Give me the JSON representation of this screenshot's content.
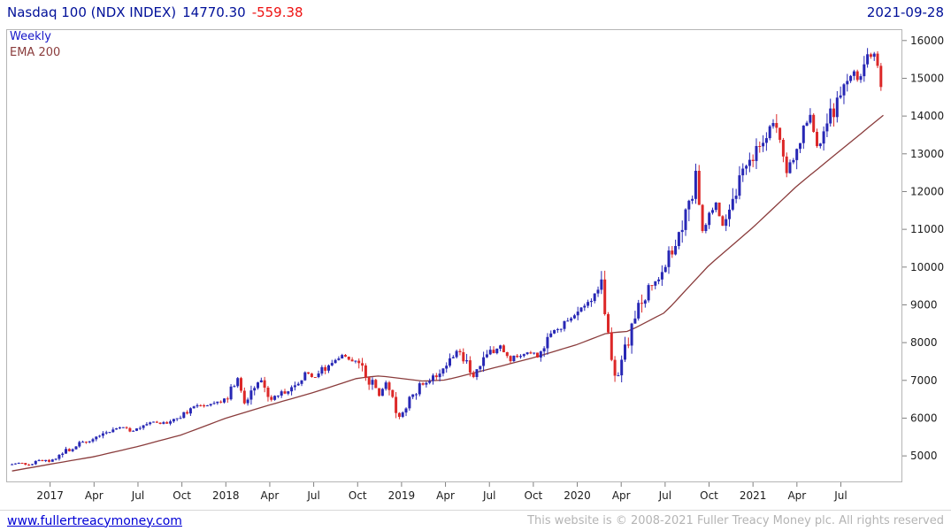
{
  "header": {
    "title": "Nasdaq 100 (NDX INDEX)",
    "price": "14770.30",
    "change": "-559.38",
    "date": "2021-09-28"
  },
  "legend": {
    "series": "Weekly",
    "overlay": "EMA 200"
  },
  "footer": {
    "link": "www.fullertreacymoney.com",
    "copyright": "This website is © 2008-2021 Fuller Treacy Money plc. All rights reserved"
  },
  "colors": {
    "navy": "#001099",
    "change_red": "#ee1111",
    "up": "#2727b5",
    "down": "#dc2828",
    "ema": "#8a3c3c",
    "legend_blue": "#1616c8",
    "axis_text": "#1c1c1c",
    "frame": "#b5b5b5",
    "tick": "#808080"
  },
  "chart_data": {
    "type": "candlestick",
    "title": "Nasdaq 100 (NDX INDEX)",
    "timeframe": "Weekly",
    "overlay": "EMA 200 (price overlay line)",
    "as_of": "2021-09-28",
    "last_close": 14770.3,
    "last_change": -559.38,
    "grid": false,
    "legend_position": "top-left",
    "y_axis_side": "right",
    "ylim": [
      4300,
      16300
    ],
    "y_ticks": [
      5000,
      6000,
      7000,
      8000,
      9000,
      10000,
      11000,
      12000,
      13000,
      14000,
      15000,
      16000
    ],
    "t_unit": "months since 2017-01",
    "t_start": -2.6,
    "t_end": 56.9,
    "week_step": 0.23,
    "x_ticks": [
      {
        "t": 0,
        "label": "2017"
      },
      {
        "t": 3,
        "label": "Apr"
      },
      {
        "t": 6,
        "label": "Jul"
      },
      {
        "t": 9,
        "label": "Oct"
      },
      {
        "t": 12,
        "label": "2018"
      },
      {
        "t": 15,
        "label": "Apr"
      },
      {
        "t": 18,
        "label": "Jul"
      },
      {
        "t": 21,
        "label": "Oct"
      },
      {
        "t": 24,
        "label": "2019"
      },
      {
        "t": 27,
        "label": "Apr"
      },
      {
        "t": 30,
        "label": "Jul"
      },
      {
        "t": 33,
        "label": "Oct"
      },
      {
        "t": 36,
        "label": "2020"
      },
      {
        "t": 39,
        "label": "Apr"
      },
      {
        "t": 42,
        "label": "Jul"
      },
      {
        "t": 45,
        "label": "Oct"
      },
      {
        "t": 48,
        "label": "2021"
      },
      {
        "t": 51,
        "label": "Apr"
      },
      {
        "t": 54,
        "label": "Jul"
      }
    ],
    "price_keypoints": [
      [
        -2.6,
        4790
      ],
      [
        -2.0,
        4820
      ],
      [
        -1.5,
        4740
      ],
      [
        -1.0,
        4870
      ],
      [
        0,
        4880
      ],
      [
        1,
        5100
      ],
      [
        2,
        5340
      ],
      [
        3,
        5440
      ],
      [
        4,
        5640
      ],
      [
        5,
        5790
      ],
      [
        5.5,
        5640
      ],
      [
        6,
        5720
      ],
      [
        7,
        5930
      ],
      [
        7.5,
        5830
      ],
      [
        8,
        5900
      ],
      [
        9,
        6080
      ],
      [
        10,
        6310
      ],
      [
        11,
        6380
      ],
      [
        12,
        6500
      ],
      [
        12.8,
        7000
      ],
      [
        13.3,
        6350
      ],
      [
        14,
        6900
      ],
      [
        14.4,
        7000
      ],
      [
        15,
        6480
      ],
      [
        15.5,
        6650
      ],
      [
        16,
        6650
      ],
      [
        17,
        6980
      ],
      [
        17.5,
        7250
      ],
      [
        18,
        7050
      ],
      [
        19,
        7400
      ],
      [
        20,
        7650
      ],
      [
        20.7,
        7530
      ],
      [
        21,
        7540
      ],
      [
        21.7,
        6950
      ],
      [
        22,
        7050
      ],
      [
        22.5,
        6580
      ],
      [
        23,
        6940
      ],
      [
        23.9,
        5970
      ],
      [
        24,
        6100
      ],
      [
        25,
        6750
      ],
      [
        26,
        7060
      ],
      [
        27,
        7400
      ],
      [
        27.9,
        7830
      ],
      [
        28,
        7800
      ],
      [
        28.9,
        7090
      ],
      [
        29,
        7160
      ],
      [
        30,
        7690
      ],
      [
        30.8,
        7960
      ],
      [
        31,
        7820
      ],
      [
        31.3,
        7500
      ],
      [
        31.8,
        7700
      ],
      [
        32,
        7640
      ],
      [
        33,
        7760
      ],
      [
        33.3,
        7610
      ],
      [
        34,
        8090
      ],
      [
        35,
        8450
      ],
      [
        36,
        8730
      ],
      [
        36.8,
        9150
      ],
      [
        37,
        9050
      ],
      [
        37.6,
        9620
      ],
      [
        38,
        8400
      ],
      [
        38.6,
        6890
      ],
      [
        39,
        7500
      ],
      [
        40,
        8730
      ],
      [
        41,
        9550
      ],
      [
        41.5,
        9750
      ],
      [
        42,
        10100
      ],
      [
        43,
        10750
      ],
      [
        44,
        12100
      ],
      [
        44.1,
        12420
      ],
      [
        44.6,
        10960
      ],
      [
        45,
        11400
      ],
      [
        45.5,
        11700
      ],
      [
        45.9,
        11050
      ],
      [
        46,
        11250
      ],
      [
        47,
        12270
      ],
      [
        48,
        12870
      ],
      [
        48.8,
        13450
      ],
      [
        49.5,
        13880
      ],
      [
        50,
        12950
      ],
      [
        50.3,
        12610
      ],
      [
        51,
        13090
      ],
      [
        51.9,
        14040
      ],
      [
        52,
        13850
      ],
      [
        52.4,
        13000
      ],
      [
        53,
        13690
      ],
      [
        54,
        14550
      ],
      [
        54.9,
        15120
      ],
      [
        55,
        14850
      ],
      [
        56,
        15580
      ],
      [
        56.4,
        15700
      ],
      [
        56.67,
        15330
      ],
      [
        56.9,
        14780
      ]
    ],
    "ema_keypoints": [
      [
        -2.6,
        4600
      ],
      [
        0,
        4780
      ],
      [
        3,
        4980
      ],
      [
        6,
        5250
      ],
      [
        9,
        5560
      ],
      [
        12,
        6000
      ],
      [
        15,
        6350
      ],
      [
        18,
        6680
      ],
      [
        21,
        7060
      ],
      [
        22.5,
        7120
      ],
      [
        24,
        7050
      ],
      [
        25.5,
        6980
      ],
      [
        27,
        7010
      ],
      [
        30,
        7300
      ],
      [
        33,
        7600
      ],
      [
        36,
        7950
      ],
      [
        38,
        8250
      ],
      [
        39.5,
        8300
      ],
      [
        41,
        8600
      ],
      [
        42,
        8800
      ],
      [
        45,
        10050
      ],
      [
        48,
        11050
      ],
      [
        51,
        12150
      ],
      [
        54,
        13100
      ],
      [
        56.9,
        14020
      ]
    ]
  }
}
